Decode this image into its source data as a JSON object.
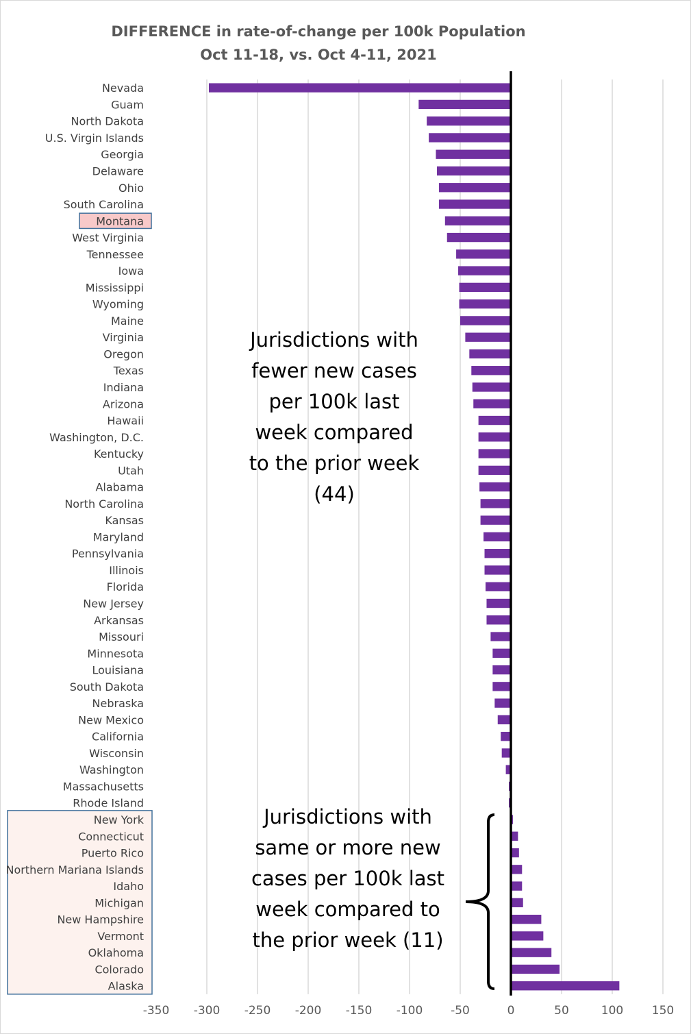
{
  "chart_data": {
    "type": "bar",
    "orientation": "horizontal",
    "title": "DIFFERENCE in rate-of-change per 100k Population",
    "subtitle": "Oct 11-18, vs. Oct 4-11, 2021",
    "xlim": [
      -350,
      150
    ],
    "x_ticks": [
      -350,
      -300,
      -250,
      -200,
      -150,
      -100,
      -50,
      0,
      50,
      100,
      150
    ],
    "grid": "vertical",
    "bar_color": "#7030a0",
    "highlight_label": "Montana",
    "highlight_color": "#f8c9c9",
    "group_box_color": "#fdf2ee",
    "box_border_color": "#41719c",
    "categories": [
      "Nevada",
      "Guam",
      "North Dakota",
      "U.S. Virgin Islands",
      "Georgia",
      "Delaware",
      "Ohio",
      "South Carolina",
      "Montana",
      "West Virginia",
      "Tennessee",
      "Iowa",
      "Mississippi",
      "Wyoming",
      "Maine",
      "Virginia",
      "Oregon",
      "Texas",
      "Indiana",
      "Arizona",
      "Hawaii",
      "Washington, D.C.",
      "Kentucky",
      "Utah",
      "Alabama",
      "North Carolina",
      "Kansas",
      "Maryland",
      "Pennsylvania",
      "Illinois",
      "Florida",
      "New Jersey",
      "Arkansas",
      "Missouri",
      "Minnesota",
      "Louisiana",
      "South Dakota",
      "Nebraska",
      "New Mexico",
      "California",
      "Wisconsin",
      "Washington",
      "Massachusetts",
      "Rhode Island",
      "New York",
      "Connecticut",
      "Puerto Rico",
      "Northern Mariana Islands",
      "Idaho",
      "Michigan",
      "New Hampshire",
      "Vermont",
      "Oklahoma",
      "Colorado",
      "Alaska"
    ],
    "values": [
      -298,
      -91,
      -83,
      -81,
      -74,
      -73,
      -71,
      -71,
      -65,
      -63,
      -54,
      -52,
      -51,
      -51,
      -50,
      -45,
      -41,
      -39,
      -38,
      -37,
      -32,
      -32,
      -32,
      -32,
      -31,
      -30,
      -30,
      -27,
      -26,
      -26,
      -25,
      -24,
      -24,
      -20,
      -18,
      -18,
      -18,
      -16,
      -13,
      -10,
      -9,
      -5,
      -2,
      -2,
      2,
      7,
      8,
      11,
      11,
      12,
      30,
      32,
      40,
      48,
      107
    ],
    "annotations": [
      {
        "lines": [
          "Jurisdictions with",
          "fewer new cases",
          "per 100k last",
          "week compared",
          "to the prior week",
          "(44)"
        ]
      },
      {
        "lines": [
          "Jurisdictions with",
          "same or more new",
          "cases per 100k last",
          "week compared to",
          "the prior week (11)"
        ]
      }
    ]
  }
}
